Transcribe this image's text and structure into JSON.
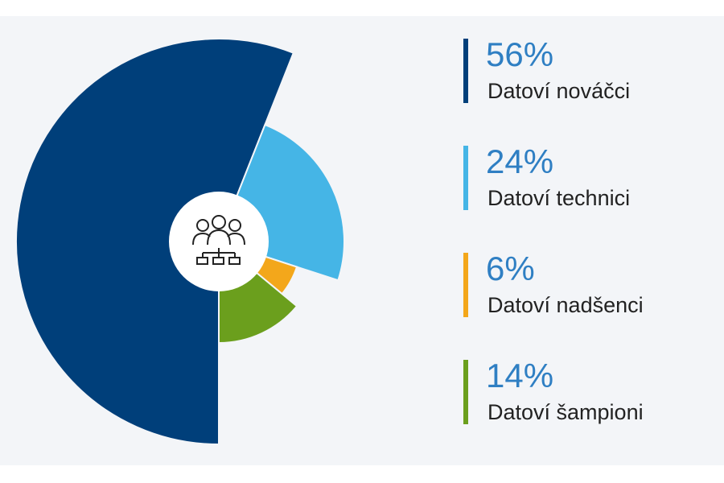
{
  "chart_data": {
    "type": "pie",
    "categories": [
      "Datoví nováčci",
      "Datoví technici",
      "Datoví nadšenci",
      "Datoví šampioni"
    ],
    "values": [
      56,
      24,
      6,
      14
    ],
    "value_labels": [
      "56%",
      "24%",
      "6%",
      "14%"
    ],
    "colors": [
      "#003f7a",
      "#45b5e6",
      "#f3a71b",
      "#6b9f1d"
    ]
  }
}
